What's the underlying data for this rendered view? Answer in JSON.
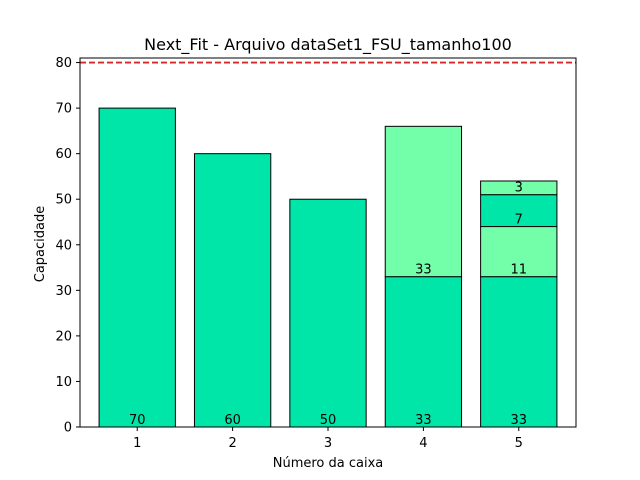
{
  "chart_data": {
    "type": "bar",
    "title": "Next_Fit - Arquivo dataSet1_FSU_tamanho100",
    "xlabel": "Número da caixa",
    "ylabel": "Capacidade",
    "categories": [
      "1",
      "2",
      "3",
      "4",
      "5"
    ],
    "ylim": [
      0,
      81
    ],
    "yticks": [
      0,
      10,
      20,
      30,
      40,
      50,
      60,
      70,
      80
    ],
    "capacity_line": 80,
    "grid": false,
    "stacked": true,
    "bins": [
      {
        "category": "1",
        "items": [
          70
        ]
      },
      {
        "category": "2",
        "items": [
          60
        ]
      },
      {
        "category": "3",
        "items": [
          50
        ]
      },
      {
        "category": "4",
        "items": [
          33,
          33
        ]
      },
      {
        "category": "5",
        "items": [
          33,
          11,
          7,
          3
        ]
      }
    ],
    "colors": {
      "primary": "#00e6a8",
      "secondary": "#73ffaa",
      "capacity_line": "#d62728",
      "edge": "#000000"
    }
  }
}
